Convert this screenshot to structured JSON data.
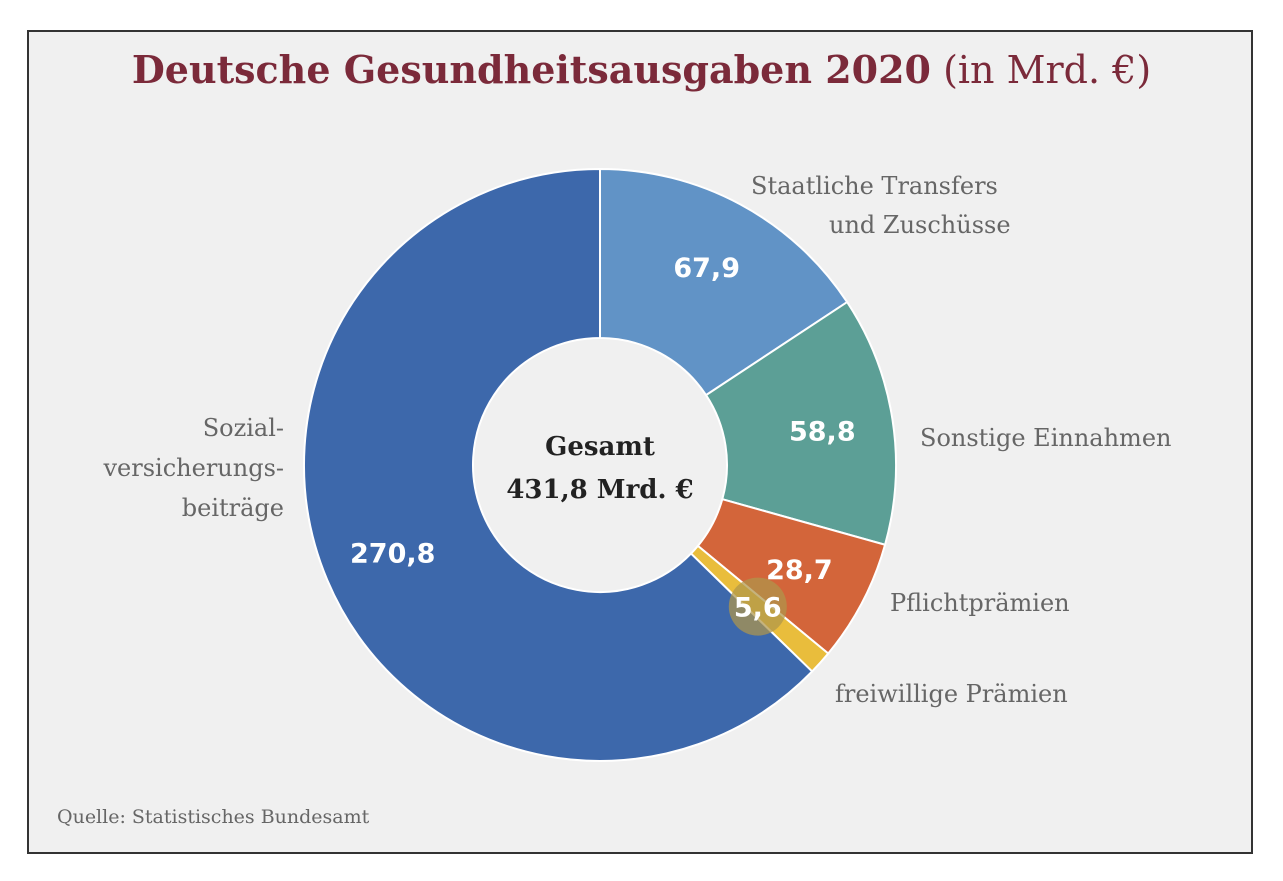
{
  "title": {
    "main": "Deutsche Gesundheitsausgaben 2020",
    "unit": "(in Mrd. €)"
  },
  "source": "Quelle: Statistisches Bundesamt",
  "center": {
    "line1": "Gesamt",
    "line2": "431,8 Mrd. €"
  },
  "labels": {
    "staat_line1": "Staatliche Transfers",
    "staat_line2": "und Zuschüsse",
    "sonstige": "Sonstige Einnahmen",
    "pflicht": "Pflichtprämien",
    "freiwillig": "freiwillige Prämien",
    "sozial_line1": "Sozial-",
    "sozial_line2": "versicherungs-",
    "sozial_line3": "beiträge"
  },
  "chart_data": {
    "type": "pie",
    "donut": true,
    "title": "Deutsche Gesundheitsausgaben 2020 (in Mrd. €)",
    "total": 431.8,
    "total_label": "431,8 Mrd. €",
    "unit": "Mrd. €",
    "slices": [
      {
        "name": "Staatliche Transfers und Zuschüsse",
        "value": 67.9,
        "label": "67,9",
        "color": "#6193c6"
      },
      {
        "name": "Sonstige Einnahmen",
        "value": 58.8,
        "label": "58,8",
        "color": "#5c9f96"
      },
      {
        "name": "Pflichtprämien",
        "value": 28.7,
        "label": "28,7",
        "color": "#d3653a"
      },
      {
        "name": "freiwillige Prämien",
        "value": 5.6,
        "label": "5,6",
        "color": "#e9bd3c"
      },
      {
        "name": "Sozialversicherungsbeiträge",
        "value": 270.8,
        "label": "270,8",
        "color": "#3d68ab"
      }
    ]
  }
}
